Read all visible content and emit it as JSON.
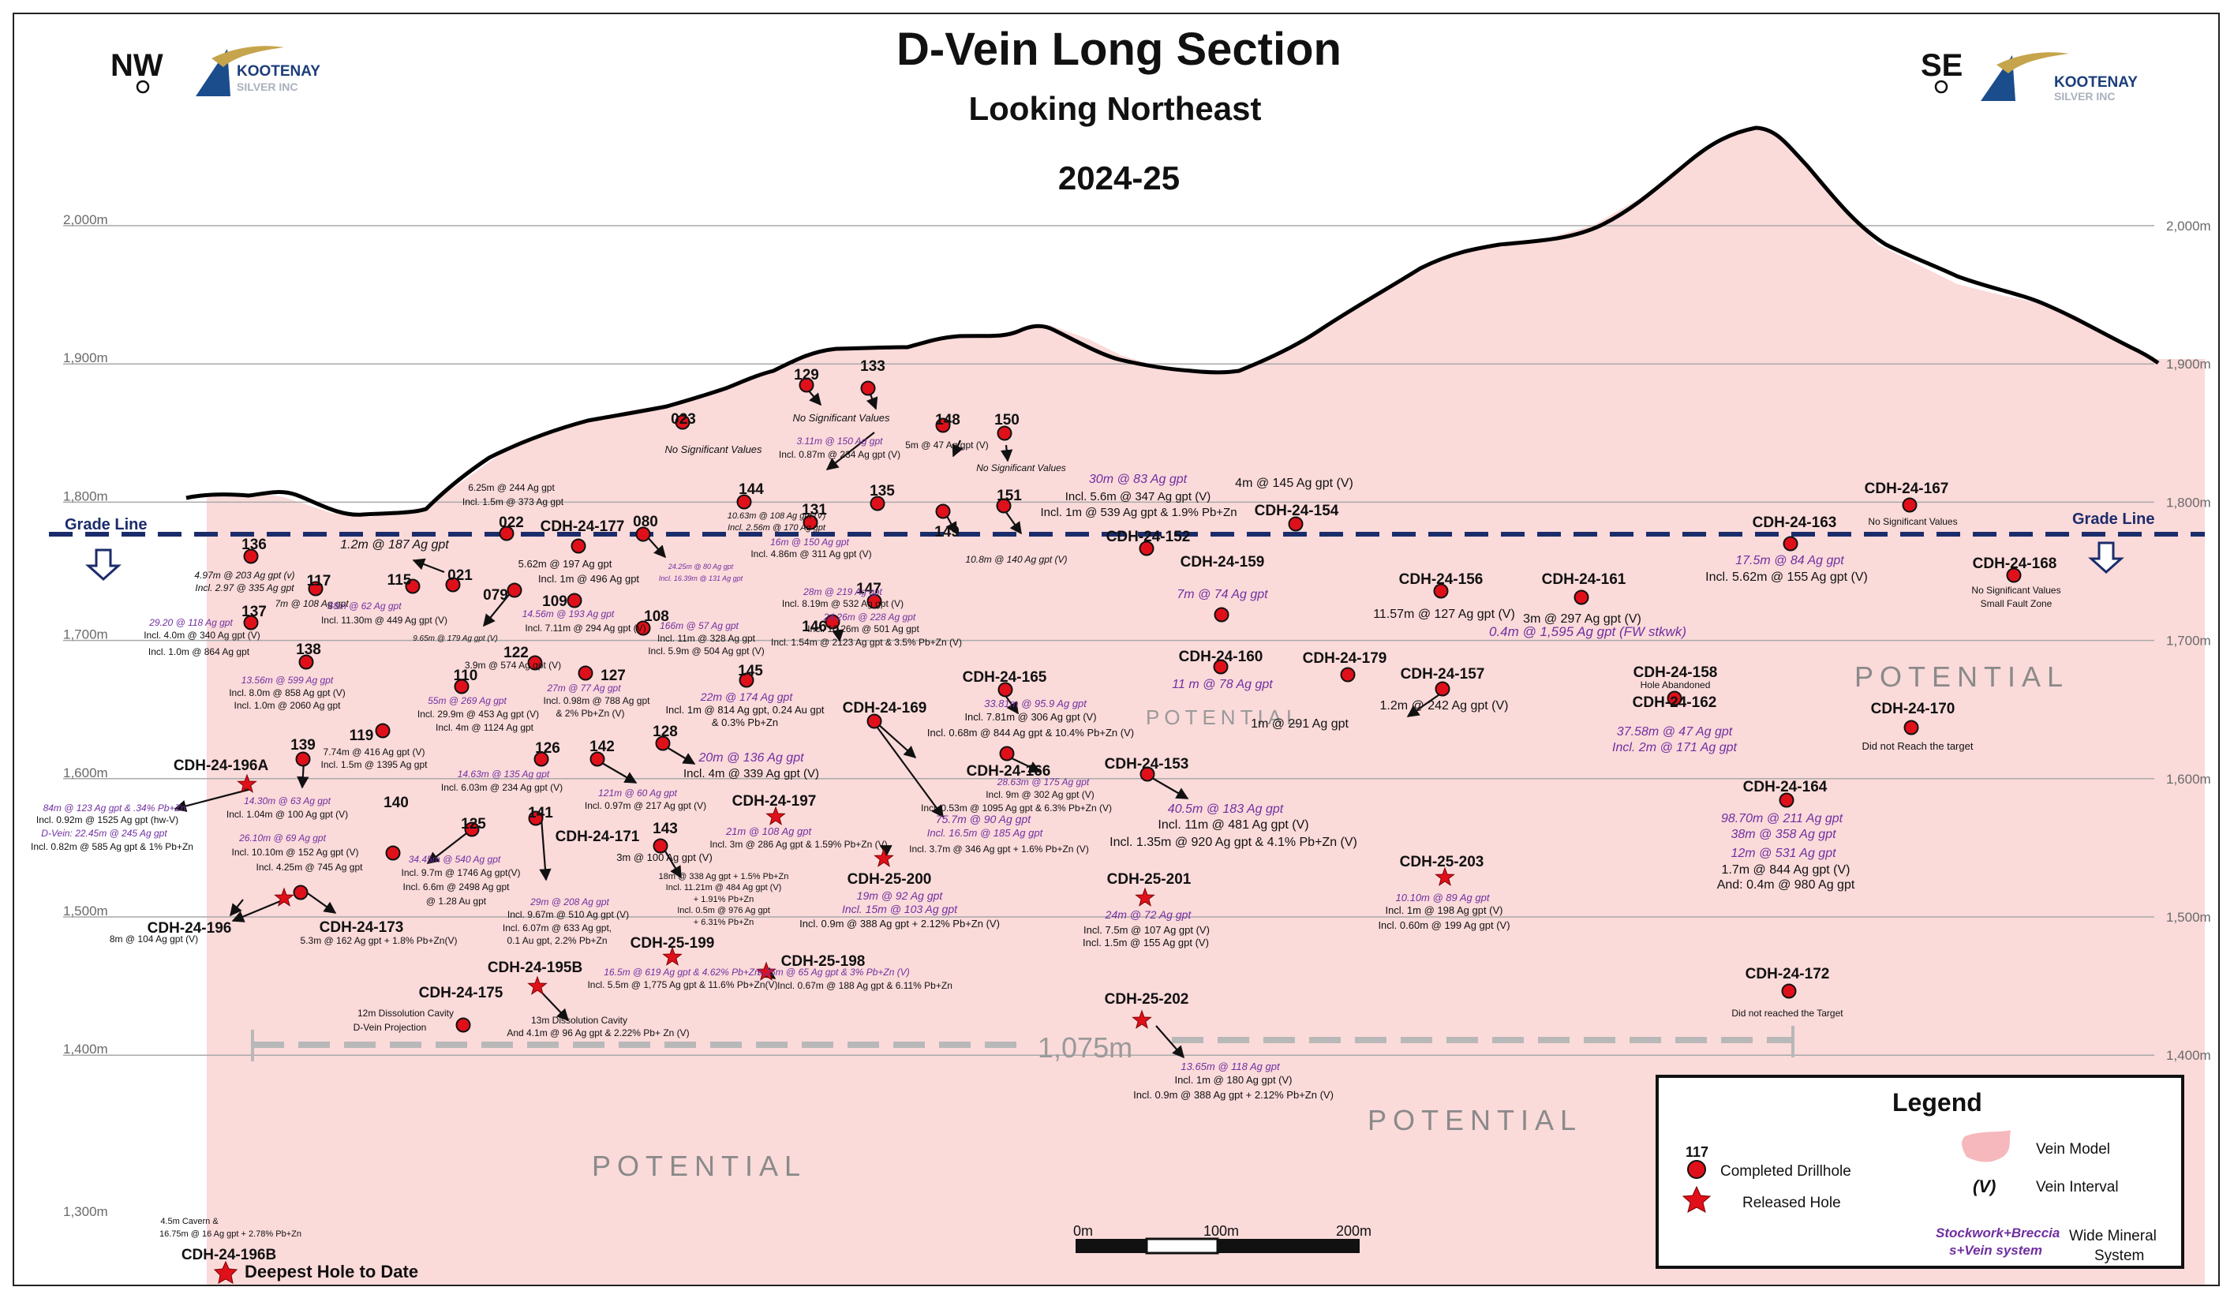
{
  "header": {
    "title": "D-Vein Long Section",
    "subtitle": "Looking Northeast",
    "year": "2024-25",
    "nw": "NW",
    "se": "SE",
    "logo_line1": "KOOTENAY",
    "logo_line2": "SILVER INC"
  },
  "elevations": [
    {
      "label": "2,000m",
      "value": 2000
    },
    {
      "label": "1,900m",
      "value": 1900
    },
    {
      "label": "1,800m",
      "value": 1800
    },
    {
      "label": "1,700m",
      "value": 1700
    },
    {
      "label": "1,600m",
      "value": 1600
    },
    {
      "label": "1,500m",
      "value": 1500
    },
    {
      "label": "1,400m",
      "value": 1400
    },
    {
      "label": "1,300m",
      "value": 1300
    }
  ],
  "grade_line": {
    "label": "Grade Line",
    "elevation": 1780
  },
  "potential_label": "POTENTIAL",
  "distance_label": "1,075m",
  "deepest_hole_label": "Deepest Hole to Date",
  "scale_bar": {
    "labels": [
      "0m",
      "100m",
      "200m"
    ]
  },
  "legend": {
    "title": "Legend",
    "count": "117",
    "completed": "Completed Drillhole",
    "released": "Released Hole",
    "vein_model": "Vein Model",
    "vein_interval_symbol": "(V)",
    "vein_interval": "Vein Interval",
    "stockwork_line1": "Stockwork+Breccia",
    "stockwork_line2": "s+Vein system",
    "wide_line1": "Wide Mineral",
    "wide_line2": "System"
  },
  "holes": [
    {
      "label": "136"
    },
    {
      "label": "117"
    },
    {
      "label": "115"
    },
    {
      "label": "021"
    },
    {
      "label": "022"
    },
    {
      "label": "CDH-24-177"
    },
    {
      "label": "080"
    },
    {
      "label": "079"
    },
    {
      "label": "109"
    },
    {
      "label": "108"
    },
    {
      "label": "137"
    },
    {
      "label": "138"
    },
    {
      "label": "110"
    },
    {
      "label": "122"
    },
    {
      "label": "127"
    },
    {
      "label": "119"
    },
    {
      "label": "139"
    },
    {
      "label": "126"
    },
    {
      "label": "142"
    },
    {
      "label": "128"
    },
    {
      "label": "145"
    },
    {
      "label": "CDH-24-196A"
    },
    {
      "label": "140"
    },
    {
      "label": "125"
    },
    {
      "label": "141"
    },
    {
      "label": "CDH-24-171"
    },
    {
      "label": "143"
    },
    {
      "label": "CDH-24-197"
    },
    {
      "label": "CDH-24-196"
    },
    {
      "label": "CDH-24-173"
    },
    {
      "label": "CDH-25-199"
    },
    {
      "label": "CDH-24-195B"
    },
    {
      "label": "CDH-25-198"
    },
    {
      "label": "CDH-24-175"
    },
    {
      "label": "CDH-24-196B"
    },
    {
      "label": "023"
    },
    {
      "label": "129"
    },
    {
      "label": "133"
    },
    {
      "label": "148"
    },
    {
      "label": "150"
    },
    {
      "label": "144"
    },
    {
      "label": "131"
    },
    {
      "label": "135"
    },
    {
      "label": "149"
    },
    {
      "label": "151"
    },
    {
      "label": "147"
    },
    {
      "label": "146"
    },
    {
      "label": "CDH-24-169"
    },
    {
      "label": "CDH-24-165"
    },
    {
      "label": "CDH-24-166"
    },
    {
      "label": "CDH-25-200"
    },
    {
      "label": "CDH-24-152"
    },
    {
      "label": "CDH-24-154"
    },
    {
      "label": "CDH-24-159"
    },
    {
      "label": "CDH-24-160"
    },
    {
      "label": "CDH-24-179"
    },
    {
      "label": "CDH-24-153"
    },
    {
      "label": "CDH-25-201"
    },
    {
      "label": "CDH-25-202"
    },
    {
      "label": "CDH-24-156"
    },
    {
      "label": "CDH-24-161"
    },
    {
      "label": "CDH-24-157"
    },
    {
      "label": "CDH-24-162"
    },
    {
      "label": "CDH-24-158"
    },
    {
      "label": "CDH-25-203"
    },
    {
      "label": "CDH-24-167"
    },
    {
      "label": "CDH-24-163"
    },
    {
      "label": "CDH-24-168"
    },
    {
      "label": "CDH-24-170"
    },
    {
      "label": "CDH-24-164"
    },
    {
      "label": "CDH-24-172"
    }
  ],
  "notes": [
    "4.97m @ 203 Ag gpt (v)",
    "Incl. 2.97 @ 335 Ag gpt",
    "7m @ 108 Ag gpt",
    "68m @ 62 Ag gpt",
    "Incl. 11.30m @ 449 Ag gpt (V)",
    "1.2m @ 187 Ag gpt",
    "6.25m @ 244 Ag gpt",
    "Incl. 1.5m @ 373 Ag gpt",
    "5.62m @ 197 Ag gpt",
    "Incl. 1m @ 496 Ag gpt",
    "24.25m @ 80 Ag gpt",
    "Incl. 16.39m @ 131 Ag gpt",
    "9.65m @ 179 Ag gpt (V)",
    "14.56m @ 193 Ag gpt",
    "Incl. 7.11m @ 294 Ag gpt (V)",
    "10.63m @ 108 Ag gpt (V)",
    "Incl. 2.56m @ 170 Ag gpt",
    "166m @ 57 Ag gpt",
    "Incl. 11m @ 328 Ag gpt",
    "Incl. 5.9m @ 504 Ag gpt (V)",
    "29.20 @ 118 Ag gpt",
    "Incl. 4.0m @ 340 Ag gpt (V)",
    "Incl. 1.0m @ 864 Ag gpt",
    "13.56m @ 599 Ag gpt",
    "Incl. 8.0m @ 858 Ag gpt (V)",
    "Incl. 1.0m @ 2060 Ag gpt",
    "3.9m @ 574 Ag gpt (V)",
    "27m @ 77 Ag gpt",
    "Incl. 0.98m @ 788 Ag gpt",
    "& 2% Pb+Zn (V)",
    "55m @ 269 Ag gpt",
    "Incl. 29.9m @ 453 Ag gpt (V)",
    "Incl. 4m @ 1124 Ag gpt",
    "7.74m @ 416 Ag gpt (V)",
    "Incl. 1.5m @ 1395 Ag gpt",
    "22m @ 174 Ag gpt",
    "Incl. 1m @ 814 Ag gpt, 0.24 Au gpt",
    "& 0.3% Pb+Zn",
    "20m @ 136 Ag gpt",
    "Incl. 4m @ 339 Ag gpt (V)",
    "14.63m @ 135 Ag gpt",
    "Incl. 6.03m @ 234 Ag gpt (V)",
    "121m @ 60 Ag gpt",
    "Incl. 0.97m @ 217 Ag gpt (V)",
    "84m @ 123 Ag gpt & .34% Pb+Zn",
    "Incl. 0.92m @ 1525 Ag gpt (hw-V)",
    "D-Vein: 22.45m @ 245 Ag gpt",
    "Incl. 0.82m @ 585 Ag gpt & 1% Pb+Zn",
    "14.30m @ 63 Ag gpt",
    "Incl. 1.04m @ 100 Ag gpt (V)",
    "26.10m @ 69 Ag gpt",
    "Incl. 10.10m @ 152 Ag gpt (V)",
    "Incl. 4.25m @ 745 Ag gpt",
    "34.45m @ 540 Ag gpt",
    "Incl. 9.7m @ 1746 Ag gpt(V)",
    "Incl. 6.6m @ 2498 Ag gpt",
    "@ 1.28 Au gpt",
    "29m @ 208 Ag gpt",
    "Incl. 9.67m @ 510 Ag gpt (V)",
    "Incl. 6.07m @ 633 Ag gpt,",
    "0.1 Au gpt, 2.2% Pb+Zn",
    "3m @ 100 Ag gpt (V)",
    "18m @ 338 Ag gpt + 1.5% Pb+Zn",
    "Incl. 11.21m @ 484 Ag gpt (V)",
    "+ 1.91% Pb+Zn",
    "Incl. 0.5m @ 976 Ag gpt",
    "+ 6.31% Pb+Zn",
    "21m @ 108 Ag gpt",
    "Incl. 3m @ 286 Ag gpt & 1.59% Pb+Zn (V)",
    "8m @ 104 Ag gpt (V)",
    "5.3m @ 162 Ag gpt + 1.8% Pb+Zn(V)",
    "16.5m @ 619 Ag gpt & 4.62% Pb+Zn",
    "Incl. 5.5m @ 1,775 Ag gpt & 11.6% Pb+Zn(V)",
    "9.25m @ 65 Ag gpt & 3% Pb+Zn (V)",
    "Incl. 0.67m @ 188 Ag gpt & 6.11% Pb+Zn",
    "12m Dissolution Cavity",
    "D-Vein Projection",
    "13m Dissolution Cavity",
    "And 4.1m @ 96 Ag gpt & 2.22% Pb+ Zn (V)",
    "4.5m Cavern &",
    "16.75m @ 16 Ag gpt + 2.78% Pb+Zn",
    "No Significant  Values",
    "No Significant  Values",
    "3.11m @ 150 Ag gpt",
    "Incl. 0.87m @ 234 Ag gpt (V)",
    "5m @ 47 Ag gpt (V)",
    "No Significant Values",
    "16m @ 150 Ag gpt",
    "Incl. 4.86m @ 311 Ag gpt (V)",
    "10.8m @ 140 Ag gpt (V)",
    "28m @ 219 Ag gpt",
    "Incl. 8.19m @ 532 Ag gpt (V)",
    "24.26m @ 228 Ag gpt",
    "Incl. 10.26m @ 501 Ag gpt",
    "Incl. 1.54m @ 2123 Ag gpt & 3.5% Pb+Zn (V)",
    "33.81m @ 95.9 Ag gpt",
    "Incl. 7.81m @ 306 Ag gpt (V)",
    "Incl. 0.68m @ 844 Ag gpt & 10.4% Pb+Zn (V)",
    "28.63m @ 175 Ag gpt",
    "Incl. 9m @ 302 Ag gpt (V)",
    "Incl. 0.53m @ 1095 Ag gpt & 6.3% Pb+Zn (V)",
    "75.7m @ 90 Ag gpt",
    "Incl. 16.5m @ 185 Ag gpt",
    "Incl. 3.7m @ 346 Ag gpt + 1.6% Pb+Zn (V)",
    "19m @ 92 Ag gpt",
    "Incl. 15m @ 103 Ag gpt",
    "Incl. 0.9m @ 388 Ag gpt + 2.12% Pb+Zn (V)",
    "30m @ 83 Ag gpt",
    "Incl. 5.6m @ 347 Ag gpt (V)",
    "Incl. 1m @ 539 Ag gpt & 1.9% Pb+Zn",
    "4m @ 145 Ag gpt (V)",
    "7m @ 74 Ag gpt",
    "11 m @ 78 Ag gpt",
    "1m @ 291 Ag gpt",
    "40.5m @ 183 Ag gpt",
    "Incl. 11m @ 481 Ag gpt (V)",
    "Incl. 1.35m @ 920 Ag gpt & 4.1% Pb+Zn (V)",
    "24m @ 72 Ag gpt",
    "Incl. 7.5m @ 107 Ag gpt (V)",
    "Incl. 1.5m @ 155 Ag gpt (V)",
    "13.65m @ 118 Ag gpt",
    "Incl. 1m @ 180 Ag gpt (V)",
    "Incl. 0.9m @ 388 Ag gpt + 2.12% Pb+Zn (V)",
    "11.57m @ 127 Ag gpt (V)",
    "3m @ 297 Ag gpt (V)",
    "0.4m @ 1,595 Ag gpt (FW stkwk)",
    "1.2m @ 242 Ag gpt (V)",
    "37.58m @ 47 Ag gpt",
    "Incl. 2m @ 171 Ag gpt",
    "Hole Abandoned",
    "10.10m @ 89 Ag gpt",
    "Incl. 1m @ 198 Ag gpt (V)",
    "Incl. 0.60m @ 199 Ag gpt (V)",
    "No Significant  Values",
    "17.5m @ 84 Ag gpt",
    "Incl. 5.62m @ 155 Ag gpt (V)",
    "No Significant  Values",
    "Small Fault Zone",
    "Did not Reach the target",
    "98.70m @ 211 Ag gpt",
    "38m @ 358 Ag gpt",
    "12m @ 531 Ag gpt",
    "1.7m @ 844 Ag gpt (V)",
    "And: 0.4m @ 980 Ag gpt",
    "Did not reached the Target"
  ],
  "colors": {
    "vein_fill": "#fbdada",
    "grade_line": "#1b2c6b",
    "marker": "#e0101a",
    "purple_text": "#7030a0"
  }
}
